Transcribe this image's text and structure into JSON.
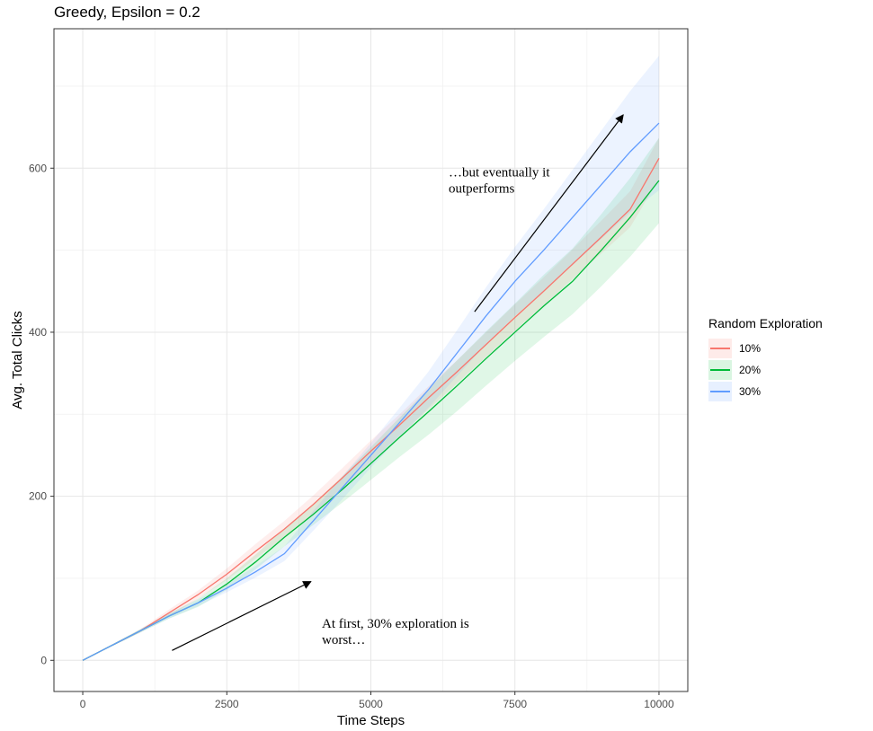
{
  "chart_data": {
    "type": "line",
    "title": "Greedy, Epsilon = 0.2",
    "xlabel": "Time Steps",
    "ylabel": "Avg. Total Clicks",
    "xlim": [
      -500,
      10500
    ],
    "ylim": [
      -38,
      770
    ],
    "xticks": [
      0,
      2500,
      5000,
      7500,
      10000
    ],
    "yticks": [
      0,
      200,
      400,
      600
    ],
    "grid": true,
    "legend": {
      "title": "Random Exploration",
      "position": "right"
    },
    "series": [
      {
        "name": "10%",
        "color": "#F8766D",
        "x": [
          0,
          500,
          1000,
          1500,
          2000,
          2500,
          3000,
          3500,
          4000,
          4500,
          5000,
          5500,
          6000,
          6500,
          7000,
          7500,
          8000,
          8500,
          9000,
          9500,
          10000
        ],
        "y": [
          0,
          18,
          36,
          58,
          80,
          105,
          133,
          160,
          190,
          222,
          255,
          287,
          320,
          352,
          385,
          418,
          450,
          483,
          516,
          550,
          612
        ],
        "band_halfwidth": [
          0,
          1,
          2,
          4,
          5,
          7,
          9,
          10,
          11,
          12,
          13,
          13,
          14,
          14,
          15,
          16,
          17,
          18,
          20,
          22,
          25
        ]
      },
      {
        "name": "20%",
        "color": "#00BA38",
        "x": [
          0,
          500,
          1000,
          1500,
          2000,
          2500,
          3000,
          3500,
          4000,
          4500,
          5000,
          5500,
          6000,
          6500,
          7000,
          7500,
          8000,
          8500,
          9000,
          9500,
          10000
        ],
        "y": [
          0,
          18,
          36,
          54,
          70,
          93,
          120,
          150,
          178,
          208,
          240,
          272,
          303,
          335,
          368,
          400,
          432,
          462,
          500,
          540,
          585
        ],
        "band_halfwidth": [
          0,
          1,
          2,
          3,
          5,
          7,
          9,
          11,
          13,
          16,
          20,
          24,
          28,
          31,
          33,
          35,
          38,
          40,
          44,
          48,
          52
        ]
      },
      {
        "name": "30%",
        "color": "#619CFF",
        "x": [
          0,
          500,
          1000,
          1500,
          2000,
          2500,
          3000,
          3500,
          4000,
          4500,
          5000,
          5500,
          6000,
          6500,
          7000,
          7500,
          8000,
          8500,
          9000,
          9500,
          10000
        ],
        "y": [
          0,
          18,
          36,
          54,
          70,
          88,
          108,
          130,
          170,
          210,
          250,
          290,
          330,
          375,
          420,
          462,
          500,
          540,
          580,
          620,
          655
        ],
        "band_halfwidth": [
          0,
          1,
          2,
          3,
          4,
          5,
          7,
          9,
          12,
          14,
          15,
          18,
          22,
          28,
          35,
          42,
          50,
          58,
          66,
          74,
          82
        ]
      }
    ],
    "annotations": [
      {
        "text_lines": [
          "At first, 30% exploration is",
          "worst…"
        ],
        "text_x": 4150,
        "text_y": 40,
        "arrow_from": [
          1550,
          12
        ],
        "arrow_to": [
          3960,
          96
        ]
      },
      {
        "text_lines": [
          "…but eventually it",
          "outperforms"
        ],
        "text_x": 6350,
        "text_y": 590,
        "arrow_from": [
          6800,
          425
        ],
        "arrow_to": [
          9380,
          665
        ]
      }
    ]
  }
}
